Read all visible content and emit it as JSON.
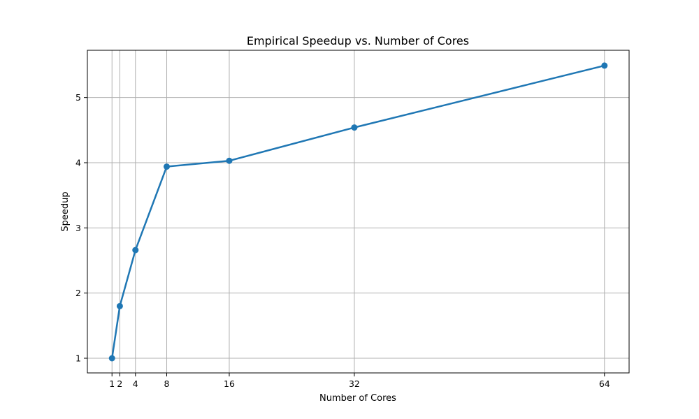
{
  "chart_data": {
    "type": "line",
    "title": "Empirical Speedup vs. Number of Cores",
    "xlabel": "Number of Cores",
    "ylabel": "Speedup",
    "x": [
      1,
      2,
      4,
      8,
      16,
      32,
      64
    ],
    "x_tick_labels": [
      "1",
      "2",
      "4",
      "8",
      "16",
      "32",
      "64"
    ],
    "y_ticks": [
      1,
      2,
      3,
      4,
      5
    ],
    "y_tick_labels": [
      "1",
      "2",
      "3",
      "4",
      "5"
    ],
    "xlim": [
      -2.15,
      67.15
    ],
    "ylim": [
      0.775,
      5.725
    ],
    "grid": true,
    "series": [
      {
        "values": [
          1.0,
          1.8,
          2.66,
          3.94,
          4.03,
          4.54,
          5.49
        ],
        "color": "#1f77b4",
        "marker": "circle"
      }
    ]
  }
}
